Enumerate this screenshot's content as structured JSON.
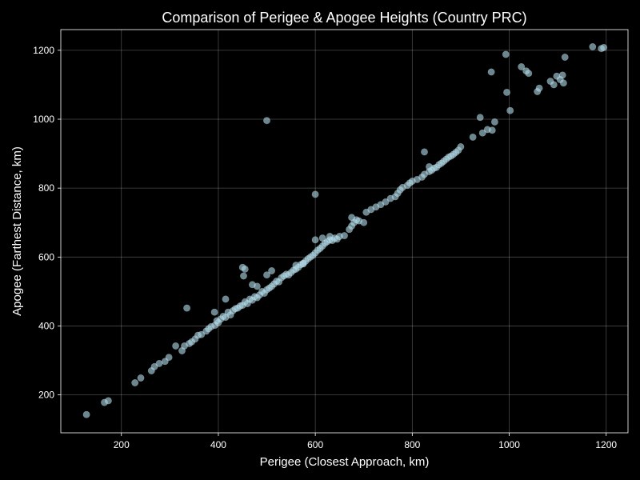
{
  "chart_data": {
    "type": "scatter",
    "title": "Comparison of Perigee & Apogee Heights (Country PRC)",
    "xlabel": "Perigee (Closest Approach, km)",
    "ylabel": "Apogee (Farthest Distance, km)",
    "xlim": [
      75,
      1245
    ],
    "ylim": [
      90,
      1260
    ],
    "xticks": [
      200,
      400,
      600,
      800,
      1000,
      1200
    ],
    "yticks": [
      200,
      400,
      600,
      800,
      1000,
      1200
    ],
    "grid": true,
    "colors": {
      "background": "#000000",
      "point": "#add8e6",
      "text": "#ffffff"
    },
    "series": [
      {
        "points": [
          [
            128,
            143
          ],
          [
            165,
            178
          ],
          [
            173,
            183
          ],
          [
            228,
            235
          ],
          [
            240,
            249
          ],
          [
            262,
            270
          ],
          [
            268,
            282
          ],
          [
            278,
            291
          ],
          [
            290,
            297
          ],
          [
            298,
            309
          ],
          [
            312,
            342
          ],
          [
            325,
            328
          ],
          [
            330,
            342
          ],
          [
            340,
            349
          ],
          [
            345,
            354
          ],
          [
            352,
            362
          ],
          [
            358,
            373
          ],
          [
            365,
            375
          ],
          [
            375,
            385
          ],
          [
            380,
            392
          ],
          [
            385,
            398
          ],
          [
            393,
            402
          ],
          [
            397,
            415
          ],
          [
            400,
            410
          ],
          [
            405,
            420
          ],
          [
            410,
            428
          ],
          [
            415,
            425
          ],
          [
            420,
            440
          ],
          [
            425,
            432
          ],
          [
            430,
            444
          ],
          [
            435,
            450
          ],
          [
            440,
            452
          ],
          [
            445,
            458
          ],
          [
            450,
            460
          ],
          [
            455,
            470
          ],
          [
            460,
            465
          ],
          [
            465,
            478
          ],
          [
            470,
            475
          ],
          [
            475,
            485
          ],
          [
            480,
            482
          ],
          [
            485,
            490
          ],
          [
            490,
            500
          ],
          [
            495,
            495
          ],
          [
            500,
            505
          ],
          [
            505,
            510
          ],
          [
            510,
            515
          ],
          [
            515,
            522
          ],
          [
            520,
            530
          ],
          [
            525,
            528
          ],
          [
            530,
            540
          ],
          [
            535,
            545
          ],
          [
            540,
            550
          ],
          [
            545,
            548
          ],
          [
            550,
            555
          ],
          [
            555,
            562
          ],
          [
            560,
            565
          ],
          [
            565,
            570
          ],
          [
            570,
            578
          ],
          [
            575,
            582
          ],
          [
            580,
            588
          ],
          [
            585,
            595
          ],
          [
            590,
            600
          ],
          [
            595,
            605
          ],
          [
            600,
            612
          ],
          [
            605,
            620
          ],
          [
            610,
            625
          ],
          [
            615,
            632
          ],
          [
            620,
            640
          ],
          [
            625,
            645
          ],
          [
            630,
            650
          ],
          [
            635,
            648
          ],
          [
            640,
            655
          ],
          [
            645,
            652
          ],
          [
            650,
            660
          ],
          [
            660,
            662
          ],
          [
            670,
            680
          ],
          [
            675,
            690
          ],
          [
            680,
            700
          ],
          [
            685,
            708
          ],
          [
            690,
            705
          ],
          [
            700,
            700
          ],
          [
            705,
            730
          ],
          [
            715,
            738
          ],
          [
            725,
            745
          ],
          [
            735,
            752
          ],
          [
            745,
            760
          ],
          [
            755,
            770
          ],
          [
            765,
            775
          ],
          [
            770,
            785
          ],
          [
            775,
            795
          ],
          [
            780,
            802
          ],
          [
            790,
            808
          ],
          [
            795,
            815
          ],
          [
            800,
            820
          ],
          [
            810,
            825
          ],
          [
            820,
            832
          ],
          [
            825,
            840
          ],
          [
            835,
            848
          ],
          [
            840,
            852
          ],
          [
            845,
            858
          ],
          [
            850,
            860
          ],
          [
            855,
            868
          ],
          [
            860,
            872
          ],
          [
            865,
            878
          ],
          [
            870,
            884
          ],
          [
            875,
            890
          ],
          [
            880,
            893
          ],
          [
            885,
            898
          ],
          [
            890,
            904
          ],
          [
            895,
            910
          ],
          [
            900,
            920
          ],
          [
            450,
            570
          ],
          [
            455,
            565
          ],
          [
            452,
            545
          ],
          [
            415,
            478
          ],
          [
            335,
            452
          ],
          [
            392,
            440
          ],
          [
            500,
            996
          ],
          [
            600,
            782
          ],
          [
            825,
            905
          ],
          [
            835,
            862
          ],
          [
            470,
            520
          ],
          [
            480,
            515
          ],
          [
            500,
            548
          ],
          [
            510,
            560
          ],
          [
            560,
            576
          ],
          [
            575,
            580
          ],
          [
            600,
            650
          ],
          [
            615,
            655
          ],
          [
            630,
            660
          ],
          [
            675,
            715
          ],
          [
            925,
            948
          ],
          [
            940,
            1005
          ],
          [
            945,
            960
          ],
          [
            955,
            970
          ],
          [
            965,
            968
          ],
          [
            970,
            992
          ],
          [
            963,
            1137
          ],
          [
            993,
            1188
          ],
          [
            995,
            1078
          ],
          [
            1002,
            1025
          ],
          [
            1025,
            1152
          ],
          [
            1035,
            1140
          ],
          [
            1040,
            1133
          ],
          [
            1058,
            1080
          ],
          [
            1062,
            1090
          ],
          [
            1085,
            1110
          ],
          [
            1092,
            1100
          ],
          [
            1098,
            1125
          ],
          [
            1105,
            1115
          ],
          [
            1110,
            1128
          ],
          [
            1112,
            1105
          ],
          [
            1115,
            1180
          ],
          [
            1172,
            1210
          ],
          [
            1190,
            1205
          ],
          [
            1195,
            1208
          ]
        ]
      }
    ]
  }
}
